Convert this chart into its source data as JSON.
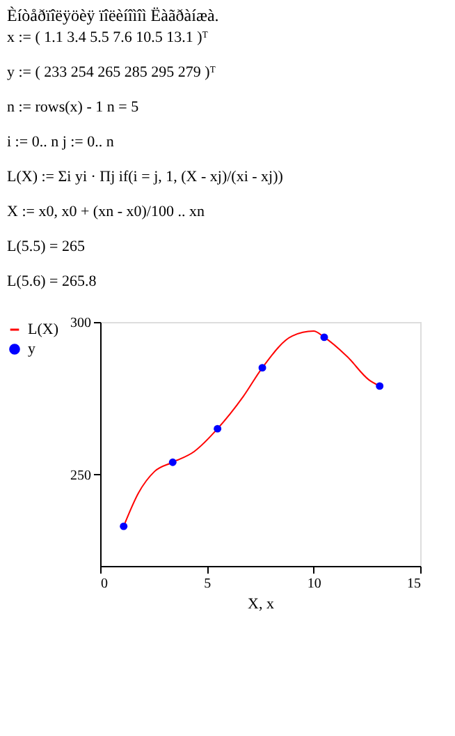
{
  "chart_data": {
    "type": "line",
    "title": "Èíòåðïîëÿöèÿ ïîëèíîìîì Ëàãðàíæà.",
    "annotations": [
      "x := ( 1.1  3.4  5.5  7.6  10.5  13.1 )ᵀ",
      "y := ( 233  254  265  285  295  279 )ᵀ",
      "n := rows(x) - 1          n = 5",
      "i := 0.. n          j := 0.. n",
      "L(X) := Σi yi · Πj if(i = j, 1, (X - xj)/(xi - xj))",
      "X := x0, x0 + (xn - x0)/100 .. xn",
      "L(5.5) = 265",
      "L(5.6) = 265.8"
    ],
    "xlabel": "X, x",
    "xlim": [
      0,
      15
    ],
    "xticks": [
      0,
      5,
      10,
      15
    ],
    "ylim": [
      220,
      300
    ],
    "yticks": [
      250,
      300
    ],
    "grid": false,
    "legend": "left",
    "series": [
      {
        "name": "L(X)",
        "color": "#ff0000",
        "line_style": "solid",
        "x": [
          1.1,
          1.8,
          2.55,
          3.4,
          4.4,
          5.5,
          6.7,
          7.6,
          9.0,
          10.0,
          10.5,
          11.6,
          12.6,
          13.1
        ],
        "values": [
          233,
          244,
          251,
          254,
          257.5,
          265,
          275.5,
          285,
          295.4,
          297,
          295,
          288.5,
          281,
          279
        ]
      },
      {
        "name": "y",
        "type": "scatter",
        "color": "#0000ff",
        "marker": "circle",
        "x": [
          1.1,
          3.4,
          5.5,
          7.6,
          10.5,
          13.1
        ],
        "values": [
          233,
          254,
          265,
          285,
          295,
          279
        ]
      }
    ]
  }
}
